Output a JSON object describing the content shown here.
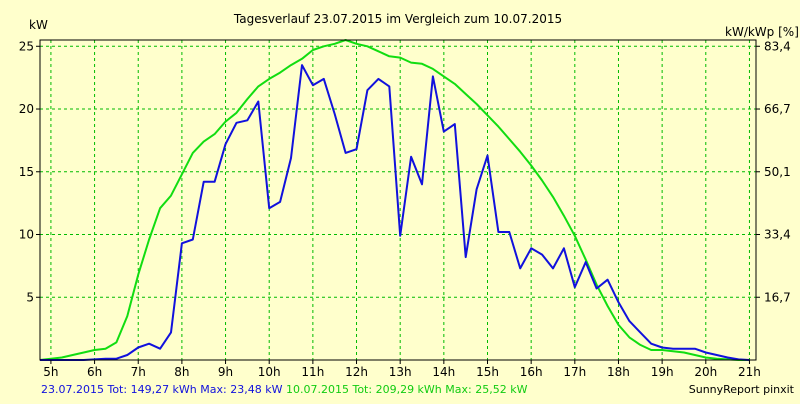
{
  "chart_data": {
    "type": "line",
    "title": "Tagesverlauf 23.07.2015 im Vergleich zum 10.07.2015",
    "ylabel_left": "kW",
    "ylabel_right": "kW/kWp [%]",
    "xlim": [
      4.75,
      21.15
    ],
    "ylim": [
      0,
      25.5
    ],
    "x_ticks": [
      "5h",
      "6h",
      "7h",
      "8h",
      "9h",
      "10h",
      "11h",
      "12h",
      "13h",
      "14h",
      "15h",
      "16h",
      "17h",
      "18h",
      "19h",
      "20h",
      "21h"
    ],
    "y_ticks_left": [
      "5",
      "10",
      "15",
      "20",
      "25"
    ],
    "y_ticks_right": [
      "16,7",
      "33,4",
      "50,1",
      "66,7",
      "83,4"
    ],
    "grid": true,
    "colors": {
      "background": "#ffffcc",
      "grid": "#00bb00",
      "series_a": "#1111dd",
      "series_b": "#11dd11"
    },
    "series": [
      {
        "name": "23.07.2015",
        "color": "#1111dd",
        "x": [
          4.75,
          5.5,
          5.75,
          6,
          6.25,
          6.5,
          6.75,
          7,
          7.25,
          7.5,
          7.75,
          8,
          8.25,
          8.5,
          8.75,
          9,
          9.25,
          9.5,
          9.75,
          10,
          10.25,
          10.5,
          10.75,
          11,
          11.25,
          11.5,
          11.75,
          12,
          12.25,
          12.5,
          12.75,
          13,
          13.25,
          13.5,
          13.75,
          14,
          14.25,
          14.5,
          14.75,
          15,
          15.25,
          15.5,
          15.75,
          16,
          16.25,
          16.5,
          16.75,
          17,
          17.25,
          17.5,
          17.75,
          18,
          18.25,
          18.5,
          18.75,
          19,
          19.25,
          19.5,
          19.75,
          20,
          20.25,
          20.5,
          20.75,
          21
        ],
        "values": [
          0,
          0,
          0,
          0.05,
          0.1,
          0.1,
          0.4,
          1,
          1.3,
          0.9,
          2.2,
          9.3,
          9.6,
          14.2,
          14.2,
          17.2,
          18.9,
          19.1,
          20.6,
          12.1,
          12.6,
          16.1,
          23.5,
          21.9,
          22.4,
          19.6,
          16.5,
          16.8,
          21.5,
          22.4,
          21.8,
          9.9,
          16.2,
          14.0,
          22.6,
          18.2,
          18.8,
          8.2,
          13.6,
          16.3,
          10.2,
          10.2,
          7.3,
          8.9,
          8.4,
          7.3,
          8.9,
          5.8,
          7.8,
          5.7,
          6.4,
          4.6,
          3.1,
          2.2,
          1.3,
          1.0,
          0.9,
          0.9,
          0.9,
          0.6,
          0.4,
          0.2,
          0.05,
          0
        ]
      },
      {
        "name": "10.07.2015",
        "color": "#11dd11",
        "x": [
          4.75,
          5.25,
          5.5,
          5.75,
          6,
          6.25,
          6.5,
          6.75,
          7,
          7.25,
          7.5,
          7.75,
          8,
          8.25,
          8.5,
          8.75,
          9,
          9.25,
          9.5,
          9.75,
          10,
          10.25,
          10.5,
          10.75,
          11,
          11.25,
          11.5,
          11.75,
          12,
          12.25,
          12.5,
          12.75,
          13,
          13.25,
          13.5,
          13.75,
          14,
          14.25,
          14.5,
          14.75,
          15,
          15.25,
          15.5,
          15.75,
          16,
          16.25,
          16.5,
          16.75,
          17,
          17.25,
          17.5,
          17.75,
          18,
          18.25,
          18.5,
          18.75,
          19,
          19.25,
          19.5,
          19.75,
          20,
          20.25,
          20.5,
          20.75,
          21
        ],
        "values": [
          0,
          0.2,
          0.4,
          0.6,
          0.8,
          0.9,
          1.4,
          3.5,
          6.8,
          9.6,
          12.1,
          13.1,
          14.8,
          16.5,
          17.4,
          18.0,
          19.0,
          19.7,
          20.8,
          21.8,
          22.4,
          22.9,
          23.5,
          24.0,
          24.7,
          25.0,
          25.2,
          25.5,
          25.2,
          25.0,
          24.6,
          24.2,
          24.1,
          23.7,
          23.6,
          23.2,
          22.6,
          22.0,
          21.2,
          20.4,
          19.5,
          18.6,
          17.6,
          16.6,
          15.5,
          14.3,
          13.0,
          11.5,
          9.9,
          8.0,
          6.0,
          4.3,
          2.8,
          1.8,
          1.2,
          0.8,
          0.8,
          0.7,
          0.6,
          0.4,
          0.2,
          0.1,
          0.05,
          0,
          0
        ]
      }
    ]
  },
  "footer": {
    "legend_a": "23.07.2015 Tot: 149,27 kWh Max: 23,48 kW",
    "legend_b": "10.07.2015 Tot: 209,29 kWh Max: 25,52 kW",
    "brand": "SunnyReport pinxit"
  }
}
